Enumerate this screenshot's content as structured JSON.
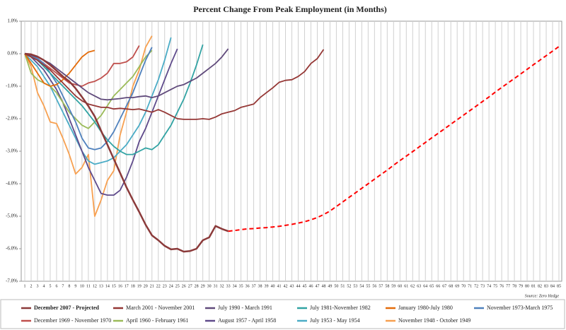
{
  "chart_data": {
    "type": "line",
    "title": "Percent Change From Peak Employment (in Months)",
    "source": "Source: Zero Hedge",
    "categories": [
      "1",
      "2",
      "3",
      "4",
      "5",
      "6",
      "7",
      "8",
      "9",
      "10",
      "11",
      "12",
      "13",
      "14",
      "15",
      "16",
      "17",
      "18",
      "19",
      "20",
      "21",
      "22",
      "23",
      "24",
      "25",
      "26",
      "27",
      "28",
      "29",
      "30",
      "31",
      "32",
      "33",
      "34",
      "35",
      "36",
      "37",
      "38",
      "39",
      "40",
      "41",
      "42",
      "43",
      "44",
      "45",
      "46",
      "47",
      "48",
      "49",
      "50",
      "51",
      "52",
      "53",
      "54",
      "55",
      "56",
      "57",
      "58",
      "59",
      "60",
      "61",
      "62",
      "63",
      "64",
      "65",
      "66",
      "67",
      "68",
      "69",
      "70",
      "71",
      "72",
      "73",
      "74",
      "75",
      "76",
      "77",
      "78",
      "79",
      "80",
      "81",
      "82",
      "83",
      "84",
      "85"
    ],
    "ylim": [
      -7,
      1
    ],
    "yticks": [
      {
        "value": 1,
        "label": "1.0%"
      },
      {
        "value": 0,
        "label": "0.0%"
      },
      {
        "value": -1,
        "label": "-1.0%"
      },
      {
        "value": -2,
        "label": "-2.0%"
      },
      {
        "value": -3,
        "label": "-3.0%"
      },
      {
        "value": -4,
        "label": "-4.0%"
      },
      {
        "value": -5,
        "label": "-5.0%"
      },
      {
        "value": -6,
        "label": "-6.0%"
      },
      {
        "value": -7,
        "label": "-7.0%"
      }
    ],
    "grid": true,
    "legend": "bottom",
    "series": [
      {
        "name": "December 2007 - Projected",
        "color": "#8b3a3a",
        "projected_color": "#ff0000",
        "values": [
          0,
          -0.02,
          -0.09,
          -0.2,
          -0.35,
          -0.52,
          -0.7,
          -0.85,
          -1.07,
          -1.33,
          -1.61,
          -1.93,
          -2.37,
          -2.8,
          -3.24,
          -3.67,
          -4.11,
          -4.5,
          -4.87,
          -5.26,
          -5.59,
          -5.74,
          -5.91,
          -6.02,
          -6.0,
          -6.09,
          -6.07,
          -6.0,
          -5.74,
          -5.65,
          -5.3,
          -5.39,
          -5.46,
          null,
          null,
          null,
          null,
          null,
          null,
          null,
          null,
          null,
          null,
          null,
          null,
          null,
          null,
          null,
          null,
          null,
          null,
          null,
          null,
          null,
          null,
          null,
          null,
          null,
          null,
          null,
          null,
          null,
          null,
          null,
          null,
          null,
          null,
          null,
          null,
          null,
          null,
          null,
          null,
          null,
          null,
          null,
          null,
          null,
          null,
          null,
          null,
          null,
          null,
          null,
          null
        ],
        "projected_values": [
          null,
          null,
          null,
          null,
          null,
          null,
          null,
          null,
          null,
          null,
          null,
          null,
          null,
          null,
          null,
          null,
          null,
          null,
          null,
          null,
          null,
          null,
          null,
          null,
          null,
          null,
          null,
          null,
          null,
          null,
          null,
          null,
          -5.46,
          -5.44,
          -5.41,
          -5.39,
          -5.38,
          -5.36,
          -5.35,
          -5.33,
          -5.31,
          -5.28,
          -5.25,
          -5.21,
          -5.17,
          -5.11,
          -5.04,
          -4.95,
          -4.84,
          -4.7,
          -4.56,
          -4.42,
          -4.28,
          -4.14,
          -4.0,
          -3.86,
          -3.72,
          -3.58,
          -3.43,
          -3.29,
          -3.15,
          -3.01,
          -2.87,
          -2.73,
          -2.59,
          -2.45,
          -2.31,
          -2.17,
          -2.03,
          -1.89,
          -1.75,
          -1.61,
          -1.47,
          -1.33,
          -1.18,
          -1.04,
          -0.9,
          -0.76,
          -0.62,
          -0.48,
          -0.34,
          -0.2,
          -0.06,
          0.08,
          0.22
        ]
      },
      {
        "name": "March 2001 - November 2001",
        "color": "#953735",
        "values": [
          0,
          -0.1,
          -0.2,
          -0.35,
          -0.5,
          -0.7,
          -0.9,
          -1.1,
          -1.3,
          -1.45,
          -1.55,
          -1.6,
          -1.65,
          -1.65,
          -1.7,
          -1.68,
          -1.7,
          -1.72,
          -1.7,
          -1.75,
          -1.8,
          -1.72,
          -1.8,
          -1.9,
          -2.0,
          -2.02,
          -2.02,
          -2.02,
          -2.0,
          -2.02,
          -1.95,
          -1.85,
          -1.8,
          -1.75,
          -1.65,
          -1.6,
          -1.55,
          -1.35,
          -1.2,
          -1.05,
          -0.88,
          -0.82,
          -0.8,
          -0.7,
          -0.55,
          -0.3,
          -0.15,
          0.13,
          null,
          null,
          null,
          null,
          null,
          null,
          null,
          null,
          null,
          null,
          null,
          null,
          null,
          null,
          null,
          null,
          null,
          null,
          null,
          null,
          null,
          null,
          null,
          null,
          null,
          null,
          null,
          null,
          null,
          null,
          null,
          null,
          null,
          null,
          null,
          null,
          null
        ]
      },
      {
        "name": "July 1990 - March 1991",
        "color": "#604a7b",
        "values": [
          0,
          -0.05,
          -0.1,
          -0.2,
          -0.3,
          -0.45,
          -0.6,
          -0.75,
          -0.9,
          -1.05,
          -1.2,
          -1.3,
          -1.4,
          -1.42,
          -1.4,
          -1.38,
          -1.35,
          -1.35,
          -1.32,
          -1.3,
          -1.35,
          -1.3,
          -1.2,
          -1.1,
          -1.0,
          -0.95,
          -0.85,
          -0.75,
          -0.6,
          -0.45,
          -0.3,
          -0.1,
          0.15,
          null,
          null,
          null,
          null,
          null,
          null,
          null,
          null,
          null,
          null,
          null,
          null,
          null,
          null,
          null,
          null,
          null,
          null,
          null,
          null,
          null,
          null,
          null,
          null,
          null,
          null,
          null,
          null,
          null,
          null,
          null,
          null,
          null,
          null,
          null,
          null,
          null,
          null,
          null,
          null,
          null,
          null,
          null,
          null,
          null,
          null,
          null,
          null,
          null,
          null,
          null,
          null
        ]
      },
      {
        "name": "July 1981-November 1982",
        "color": "#31a3a3",
        "values": [
          0,
          -0.1,
          -0.2,
          -0.4,
          -0.6,
          -0.8,
          -1.0,
          -1.2,
          -1.4,
          -1.6,
          -1.85,
          -2.1,
          -2.4,
          -2.65,
          -2.85,
          -3.0,
          -3.1,
          -3.1,
          -3.0,
          -2.9,
          -2.95,
          -2.8,
          -2.5,
          -2.2,
          -1.8,
          -1.4,
          -0.9,
          -0.35,
          0.28,
          null,
          null,
          null,
          null,
          null,
          null,
          null,
          null,
          null,
          null,
          null,
          null,
          null,
          null,
          null,
          null,
          null,
          null,
          null,
          null,
          null,
          null,
          null,
          null,
          null,
          null,
          null,
          null,
          null,
          null,
          null,
          null,
          null,
          null,
          null,
          null,
          null,
          null,
          null,
          null,
          null,
          null,
          null,
          null,
          null,
          null,
          null,
          null,
          null,
          null,
          null,
          null,
          null,
          null,
          null,
          null
        ]
      },
      {
        "name": "January 1980-July 1980",
        "color": "#e46c0a",
        "values": [
          0,
          -0.3,
          -0.6,
          -0.9,
          -1.0,
          -0.95,
          -0.8,
          -0.6,
          -0.35,
          -0.1,
          0.05,
          0.1,
          null,
          null,
          null,
          null,
          null,
          null,
          null,
          null,
          null,
          null,
          null,
          null,
          null,
          null,
          null,
          null,
          null,
          null,
          null,
          null,
          null,
          null,
          null,
          null,
          null,
          null,
          null,
          null,
          null,
          null,
          null,
          null,
          null,
          null,
          null,
          null,
          null,
          null,
          null,
          null,
          null,
          null,
          null,
          null,
          null,
          null,
          null,
          null,
          null,
          null,
          null,
          null,
          null,
          null,
          null,
          null,
          null,
          null,
          null,
          null,
          null,
          null,
          null,
          null,
          null,
          null,
          null,
          null,
          null,
          null,
          null,
          null,
          null
        ]
      },
      {
        "name": "November 1973-March 1975",
        "color": "#4f81bd",
        "values": [
          0,
          -0.05,
          -0.15,
          -0.3,
          -0.6,
          -0.9,
          -1.3,
          -1.7,
          -2.1,
          -2.6,
          -2.9,
          -2.95,
          -2.9,
          -2.7,
          -2.4,
          -2.0,
          -1.6,
          -1.2,
          -0.7,
          -0.2,
          0.2,
          null,
          null,
          null,
          null,
          null,
          null,
          null,
          null,
          null,
          null,
          null,
          null,
          null,
          null,
          null,
          null,
          null,
          null,
          null,
          null,
          null,
          null,
          null,
          null,
          null,
          null,
          null,
          null,
          null,
          null,
          null,
          null,
          null,
          null,
          null,
          null,
          null,
          null,
          null,
          null,
          null,
          null,
          null,
          null,
          null,
          null,
          null,
          null,
          null,
          null,
          null,
          null,
          null,
          null,
          null,
          null,
          null,
          null,
          null,
          null,
          null,
          null,
          null,
          null
        ]
      },
      {
        "name": "December 1969 - November 1970",
        "color": "#c0504d",
        "values": [
          0,
          -0.05,
          -0.15,
          -0.3,
          -0.45,
          -0.6,
          -0.75,
          -0.9,
          -0.95,
          -1.0,
          -0.9,
          -0.85,
          -0.75,
          -0.6,
          -0.3,
          -0.3,
          -0.25,
          -0.1,
          0.25,
          null,
          null,
          null,
          null,
          null,
          null,
          null,
          null,
          null,
          null,
          null,
          null,
          null,
          null,
          null,
          null,
          null,
          null,
          null,
          null,
          null,
          null,
          null,
          null,
          null,
          null,
          null,
          null,
          null,
          null,
          null,
          null,
          null,
          null,
          null,
          null,
          null,
          null,
          null,
          null,
          null,
          null,
          null,
          null,
          null,
          null,
          null,
          null,
          null,
          null,
          null,
          null,
          null,
          null,
          null,
          null,
          null,
          null,
          null,
          null,
          null,
          null,
          null,
          null,
          null,
          null
        ]
      },
      {
        "name": "April 1960 - February 1961",
        "color": "#9bbb59",
        "values": [
          0,
          -0.6,
          -0.8,
          -0.9,
          -1.0,
          -1.2,
          -1.5,
          -1.8,
          -2.0,
          -2.2,
          -2.3,
          -2.1,
          -1.9,
          -1.6,
          -1.3,
          -1.1,
          -0.9,
          -0.7,
          -0.4,
          -0.1,
          0.1,
          null,
          null,
          null,
          null,
          null,
          null,
          null,
          null,
          null,
          null,
          null,
          null,
          null,
          null,
          null,
          null,
          null,
          null,
          null,
          null,
          null,
          null,
          null,
          null,
          null,
          null,
          null,
          null,
          null,
          null,
          null,
          null,
          null,
          null,
          null,
          null,
          null,
          null,
          null,
          null,
          null,
          null,
          null,
          null,
          null,
          null,
          null,
          null,
          null,
          null,
          null,
          null,
          null,
          null,
          null,
          null,
          null,
          null,
          null,
          null,
          null,
          null,
          null,
          null
        ]
      },
      {
        "name": "August 1957 - April 1958",
        "color": "#5f4b8b",
        "values": [
          0,
          -0.1,
          -0.3,
          -0.5,
          -0.8,
          -1.1,
          -1.5,
          -2.0,
          -2.5,
          -3.0,
          -3.5,
          -3.9,
          -4.3,
          -4.35,
          -4.35,
          -4.2,
          -3.8,
          -3.3,
          -2.7,
          -2.3,
          -1.8,
          -1.3,
          -0.8,
          -0.3,
          0.15,
          null,
          null,
          null,
          null,
          null,
          null,
          null,
          null,
          null,
          null,
          null,
          null,
          null,
          null,
          null,
          null,
          null,
          null,
          null,
          null,
          null,
          null,
          null,
          null,
          null,
          null,
          null,
          null,
          null,
          null,
          null,
          null,
          null,
          null,
          null,
          null,
          null,
          null,
          null,
          null,
          null,
          null,
          null,
          null,
          null,
          null,
          null,
          null,
          null,
          null,
          null,
          null,
          null,
          null,
          null,
          null,
          null,
          null,
          null,
          null
        ]
      },
      {
        "name": "July 1953 - May 1954",
        "color": "#4bacc6",
        "values": [
          0,
          -0.2,
          -0.4,
          -0.7,
          -1.0,
          -1.4,
          -1.8,
          -2.2,
          -2.6,
          -3.0,
          -3.3,
          -3.4,
          -3.35,
          -3.3,
          -3.2,
          -3.0,
          -2.8,
          -2.5,
          -2.2,
          -1.8,
          -1.3,
          -0.8,
          -0.2,
          0.5,
          null,
          null,
          null,
          null,
          null,
          null,
          null,
          null,
          null,
          null,
          null,
          null,
          null,
          null,
          null,
          null,
          null,
          null,
          null,
          null,
          null,
          null,
          null,
          null,
          null,
          null,
          null,
          null,
          null,
          null,
          null,
          null,
          null,
          null,
          null,
          null,
          null,
          null,
          null,
          null,
          null,
          null,
          null,
          null,
          null,
          null,
          null,
          null,
          null,
          null,
          null,
          null,
          null,
          null,
          null,
          null,
          null,
          null,
          null,
          null,
          null
        ]
      },
      {
        "name": "November 1948 - October 1949",
        "color": "#f7a050",
        "values": [
          0,
          -0.4,
          -1.2,
          -1.6,
          -2.1,
          -2.15,
          -2.6,
          -3.1,
          -3.7,
          -3.5,
          -3.1,
          -5.0,
          -4.5,
          -3.9,
          -3.6,
          -2.5,
          -1.8,
          -1.0,
          -0.5,
          0.2,
          0.55,
          null,
          null,
          null,
          null,
          null,
          null,
          null,
          null,
          null,
          null,
          null,
          null,
          null,
          null,
          null,
          null,
          null,
          null,
          null,
          null,
          null,
          null,
          null,
          null,
          null,
          null,
          null,
          null,
          null,
          null,
          null,
          null,
          null,
          null,
          null,
          null,
          null,
          null,
          null,
          null,
          null,
          null,
          null,
          null,
          null,
          null,
          null,
          null,
          null,
          null,
          null,
          null,
          null,
          null,
          null,
          null,
          null,
          null,
          null,
          null,
          null,
          null,
          null,
          null
        ]
      }
    ]
  }
}
